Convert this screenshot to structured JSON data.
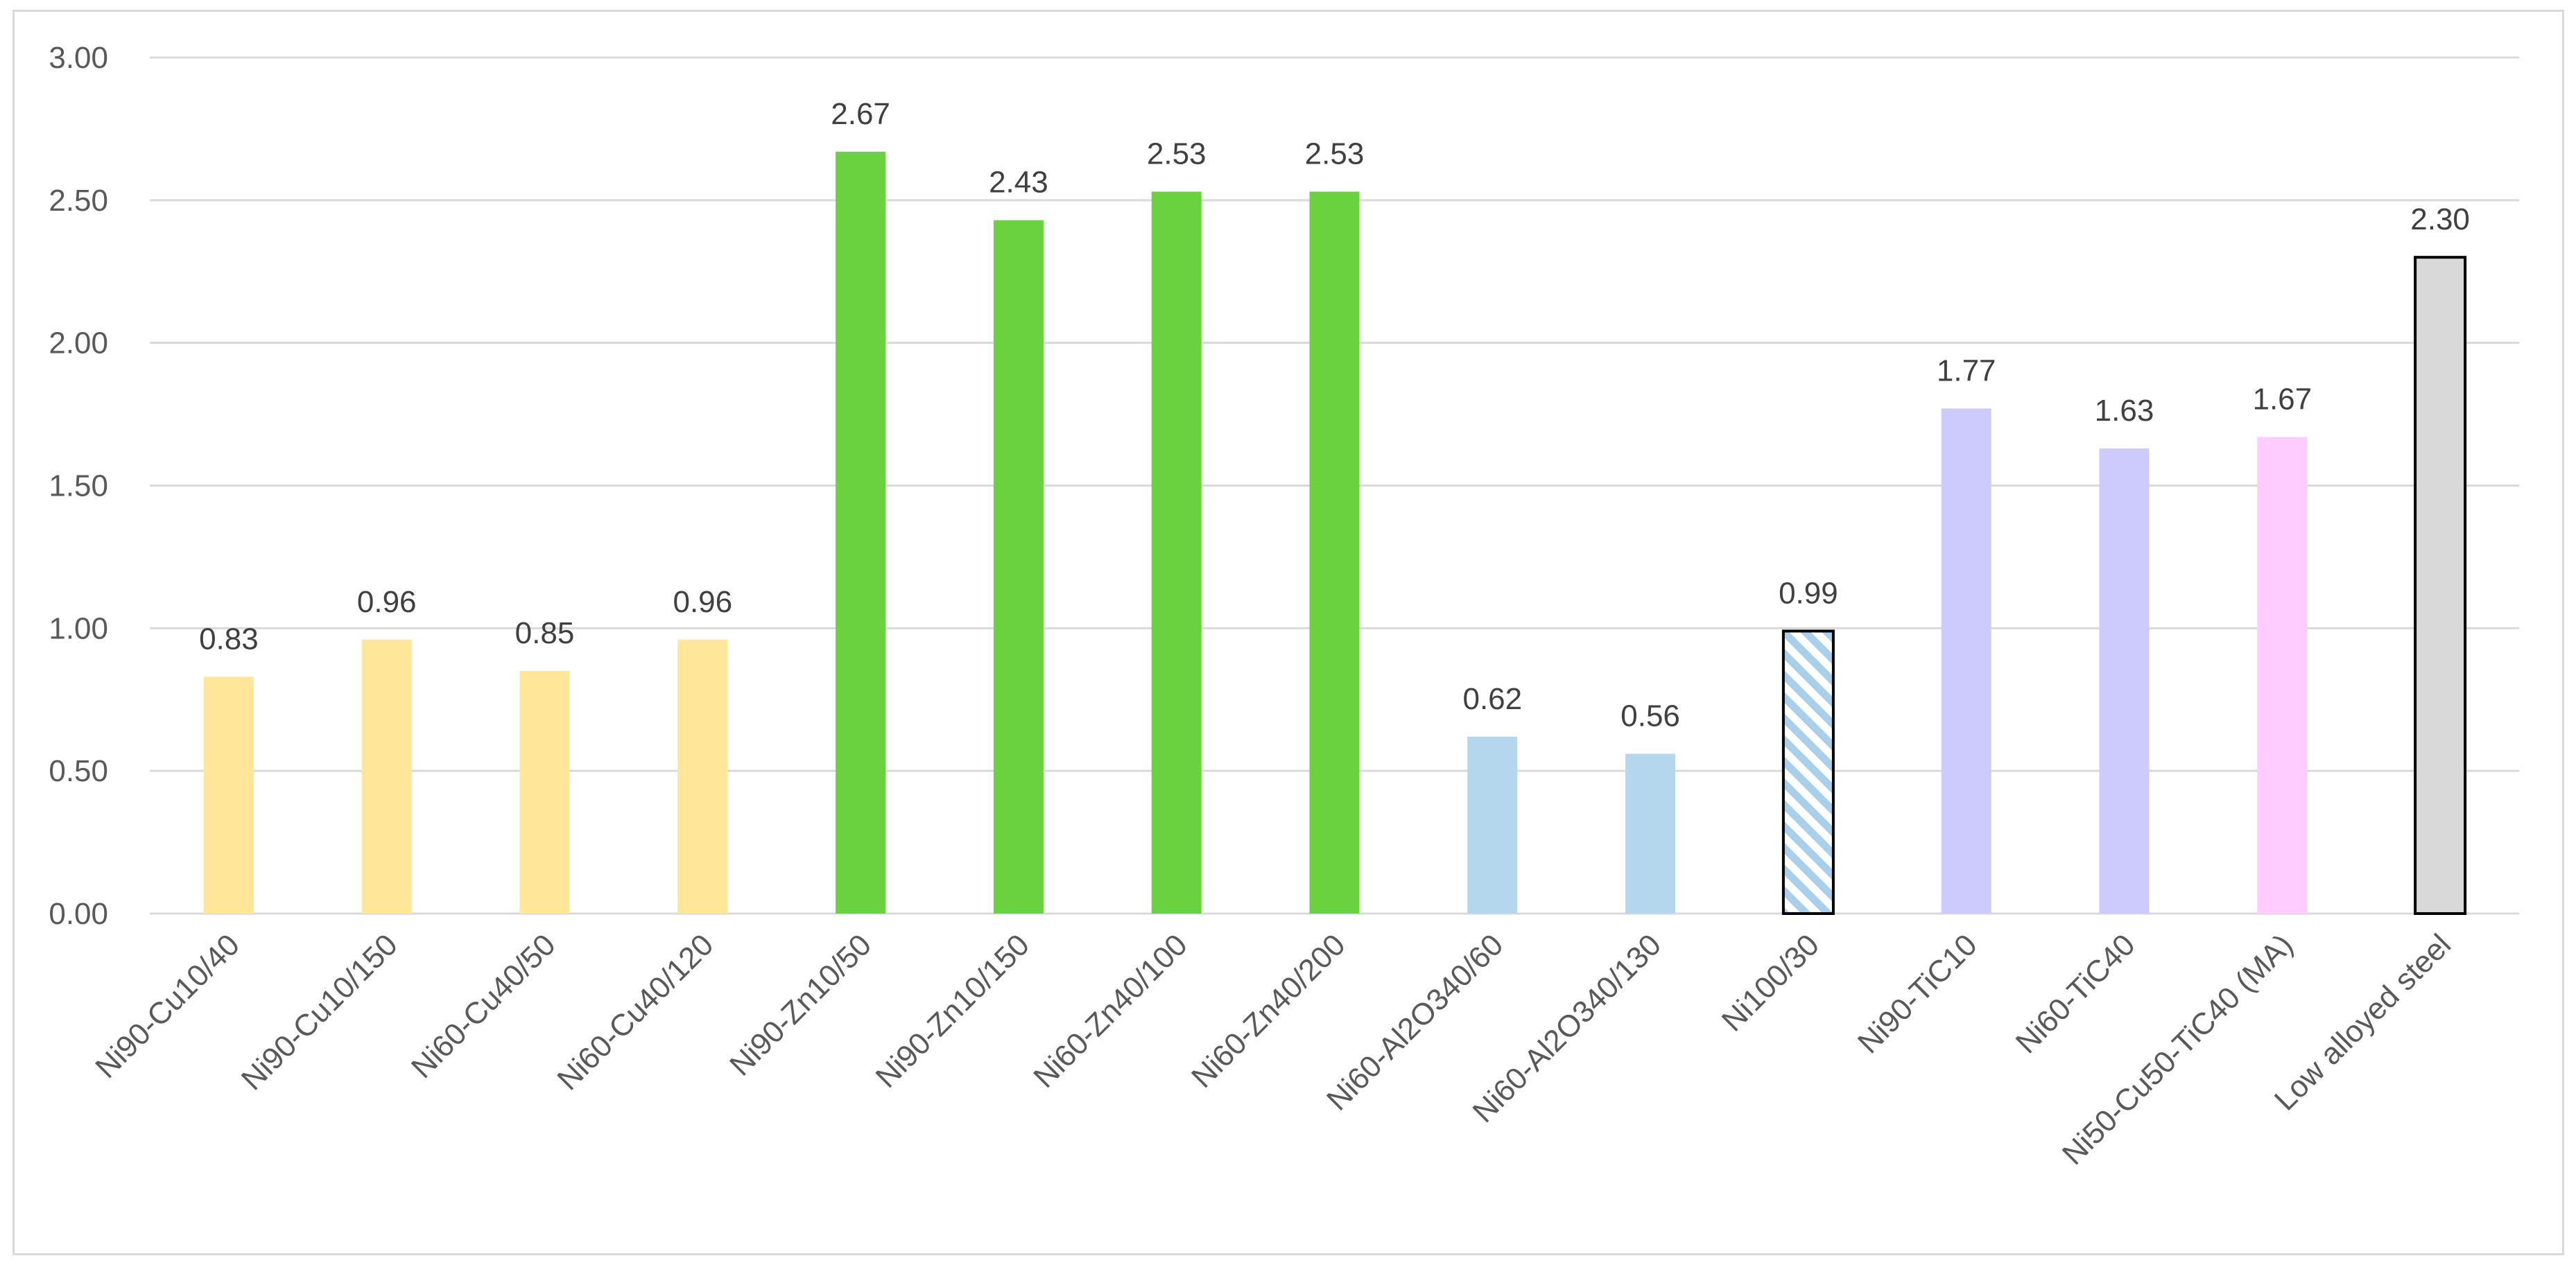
{
  "chart_data": {
    "type": "bar",
    "title": "",
    "xlabel": "",
    "ylabel": "",
    "ylim": [
      0,
      3
    ],
    "yticks": [
      "0.00",
      "0.50",
      "1.00",
      "1.50",
      "2.00",
      "2.50",
      "3.00"
    ],
    "ytick_values": [
      0,
      0.5,
      1,
      1.5,
      2,
      2.5,
      3
    ],
    "grid": true,
    "legend": "none",
    "categories": [
      "Ni90-Cu10/40",
      "Ni90-Cu10/150",
      "Ni60-Cu40/50",
      "Ni60-Cu40/120",
      "Ni90-Zn10/50",
      "Ni90-Zn10/150",
      "Ni60-Zn40/100",
      "Ni60-Zn40/200",
      "Ni60-Al2O340/60",
      "Ni60-Al2O340/130",
      "Ni100/30",
      "Ni90-TiC10",
      "Ni60-TiC40",
      "Ni50-Cu50-TiC40 (MA)",
      "Low alloyed steel"
    ],
    "values": [
      0.83,
      0.96,
      0.85,
      0.96,
      2.67,
      2.43,
      2.53,
      2.53,
      0.62,
      0.56,
      0.99,
      1.77,
      1.63,
      1.67,
      2.3
    ],
    "value_labels": [
      "0.83",
      "0.96",
      "0.85",
      "0.96",
      "2.67",
      "2.43",
      "2.53",
      "2.53",
      "0.62",
      "0.56",
      "0.99",
      "1.77",
      "1.63",
      "1.67",
      "2.30"
    ],
    "bar_colors": [
      "#ffe699",
      "#ffe699",
      "#ffe699",
      "#ffe699",
      "#6ad23e",
      "#6ad23e",
      "#6ad23e",
      "#6ad23e",
      "#b4d7ee",
      "#b4d7ee",
      "hatch-light-blue",
      "#cdcbfd",
      "#cdcbfd",
      "#ffccff",
      "#d9d9d9"
    ],
    "bar_outlined": [
      false,
      false,
      false,
      false,
      false,
      false,
      false,
      false,
      false,
      false,
      true,
      false,
      false,
      false,
      true
    ]
  }
}
